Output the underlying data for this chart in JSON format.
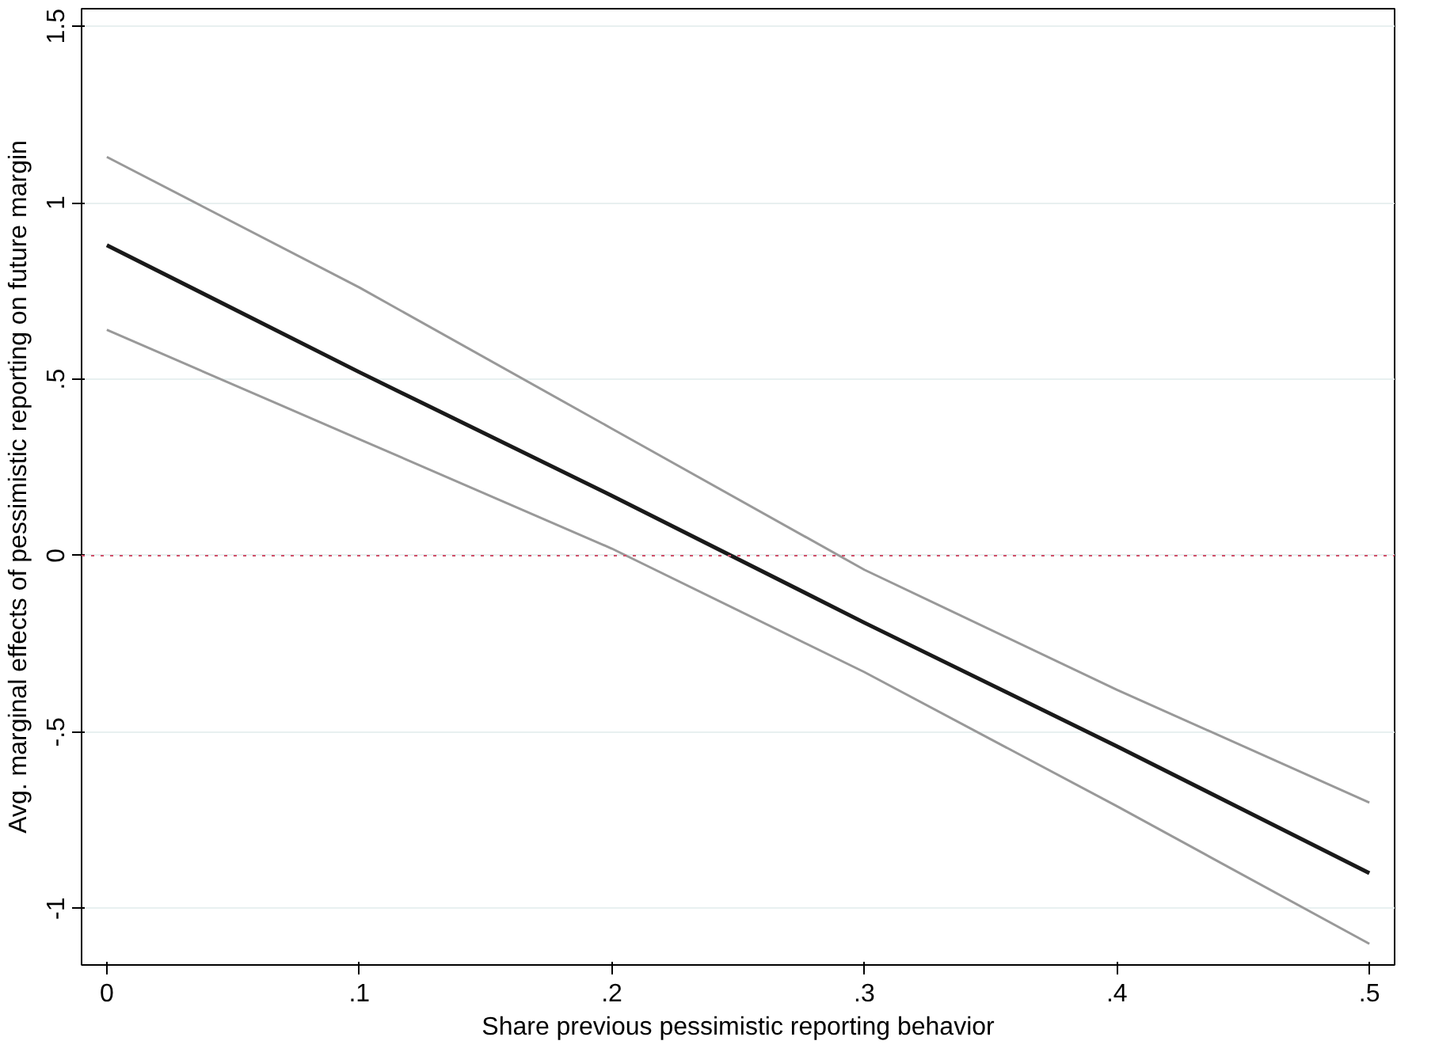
{
  "chart_data": {
    "type": "line",
    "xlabel": "Share previous pessimistic reporting behavior",
    "ylabel": "Avg. marginal effects of pessimistic reporting on future margin",
    "x": [
      0,
      0.1,
      0.2,
      0.3,
      0.4,
      0.5
    ],
    "series": [
      {
        "color": "#999999",
        "values": [
          1.13,
          0.76,
          0.36,
          -0.04,
          -0.38,
          -0.7
        ]
      },
      {
        "color": "#999999",
        "values": [
          0.64,
          0.33,
          0.02,
          -0.33,
          -0.71,
          -1.1
        ]
      },
      {
        "color": "#1a1a1a",
        "values": [
          0.88,
          0.52,
          0.17,
          -0.19,
          -0.54,
          -0.9
        ]
      }
    ],
    "xlim": [
      -0.01,
      0.51
    ],
    "ylim": [
      -1.16,
      1.55
    ],
    "xticks": [
      0,
      {
        "value": 0.1,
        "label": ".1"
      },
      {
        "value": 0.2,
        "label": ".2"
      },
      {
        "value": 0.3,
        "label": ".3"
      },
      {
        "value": 0.4,
        "label": ".4"
      },
      {
        "value": 0.5,
        "label": ".5"
      }
    ],
    "yticks": [
      {
        "value": -1,
        "label": "-1"
      },
      {
        "value": -0.5,
        "label": "-.5"
      },
      0,
      {
        "value": 0.5,
        "label": ".5"
      },
      1,
      1.5
    ],
    "grid": "y",
    "marker": "none",
    "line_style": "solid",
    "ref_lines": [
      {
        "axis": "y",
        "value": 0,
        "color": "#d0506a",
        "line_style": "dotted"
      }
    ]
  }
}
